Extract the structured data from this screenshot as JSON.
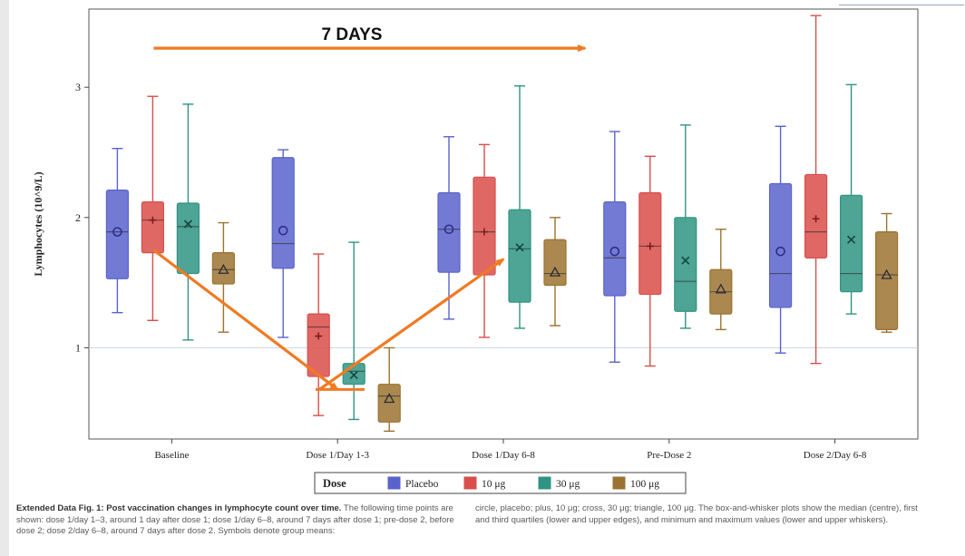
{
  "chart_data": {
    "type": "box",
    "title": "",
    "xlabel": "",
    "ylabel": "Lymphocytes (10^9/L)",
    "ylim": [
      0.3,
      3.6
    ],
    "yticks": [
      1,
      2,
      3
    ],
    "ytick_labels": [
      "1",
      "2",
      "3"
    ],
    "reference_line_y": 1.0,
    "grid": false,
    "legend_placement": "bottom-center",
    "legend_title": "Dose",
    "categories": [
      "Baseline",
      "Dose 1/Day 1-3",
      "Dose 1/Day 6-8",
      "Pre-Dose 2",
      "Dose 2/Day 6-8"
    ],
    "series": [
      {
        "name": "Placebo",
        "color": "#5a63cc",
        "mean_marker": "circle",
        "boxes": [
          {
            "min": 1.27,
            "q1": 1.53,
            "median": 1.89,
            "q3": 2.21,
            "max": 2.53,
            "mean": 1.89
          },
          {
            "min": 1.08,
            "q1": 1.61,
            "median": 1.8,
            "q3": 2.46,
            "max": 2.52,
            "mean": 1.9
          },
          {
            "min": 1.22,
            "q1": 1.58,
            "median": 1.91,
            "q3": 2.19,
            "max": 2.62,
            "mean": 1.91
          },
          {
            "min": 0.89,
            "q1": 1.4,
            "median": 1.69,
            "q3": 2.12,
            "max": 2.66,
            "mean": 1.74
          },
          {
            "min": 0.96,
            "q1": 1.31,
            "median": 1.57,
            "q3": 2.26,
            "max": 2.7,
            "mean": 1.74
          }
        ]
      },
      {
        "name": "10 μg",
        "color": "#d94e4a",
        "mean_marker": "plus",
        "boxes": [
          {
            "min": 1.21,
            "q1": 1.73,
            "median": 1.98,
            "q3": 2.12,
            "max": 2.93,
            "mean": 1.98
          },
          {
            "min": 0.48,
            "q1": 0.78,
            "median": 1.16,
            "q3": 1.26,
            "max": 1.72,
            "mean": 1.09
          },
          {
            "min": 1.08,
            "q1": 1.56,
            "median": 1.89,
            "q3": 2.31,
            "max": 2.56,
            "mean": 1.89
          },
          {
            "min": 0.86,
            "q1": 1.41,
            "median": 1.78,
            "q3": 2.19,
            "max": 2.47,
            "mean": 1.78
          },
          {
            "min": 0.88,
            "q1": 1.69,
            "median": 1.89,
            "q3": 2.33,
            "max": 3.55,
            "mean": 1.99
          }
        ]
      },
      {
        "name": "30 μg",
        "color": "#2f9483",
        "mean_marker": "cross",
        "boxes": [
          {
            "min": 1.06,
            "q1": 1.57,
            "median": 1.93,
            "q3": 2.11,
            "max": 2.87,
            "mean": 1.95
          },
          {
            "min": 0.45,
            "q1": 0.72,
            "median": 0.82,
            "q3": 0.88,
            "max": 1.81,
            "mean": 0.79
          },
          {
            "min": 1.15,
            "q1": 1.35,
            "median": 1.76,
            "q3": 2.06,
            "max": 3.01,
            "mean": 1.77
          },
          {
            "min": 1.15,
            "q1": 1.28,
            "median": 1.51,
            "q3": 2.0,
            "max": 2.71,
            "mean": 1.67
          },
          {
            "min": 1.26,
            "q1": 1.43,
            "median": 1.57,
            "q3": 2.17,
            "max": 3.02,
            "mean": 1.83
          }
        ]
      },
      {
        "name": "100 μg",
        "color": "#9b7330",
        "mean_marker": "triangle",
        "boxes": [
          {
            "min": 1.12,
            "q1": 1.49,
            "median": 1.6,
            "q3": 1.73,
            "max": 1.96,
            "mean": 1.6
          },
          {
            "min": 0.36,
            "q1": 0.43,
            "median": 0.63,
            "q3": 0.72,
            "max": 1.0,
            "mean": 0.61
          },
          {
            "min": 1.17,
            "q1": 1.48,
            "median": 1.57,
            "q3": 1.83,
            "max": 2.0,
            "mean": 1.58
          },
          {
            "min": 1.14,
            "q1": 1.26,
            "median": 1.43,
            "q3": 1.6,
            "max": 1.91,
            "mean": 1.45
          },
          {
            "min": 1.12,
            "q1": 1.14,
            "median": 1.56,
            "q3": 1.89,
            "max": 2.03,
            "mean": 1.56
          }
        ]
      }
    ],
    "annotations": [
      {
        "type": "text",
        "text": "7 DAYS",
        "color": "#111111"
      },
      {
        "type": "arrow",
        "color": "#f07a22",
        "from": {
          "category": "Baseline",
          "y": 3.3
        },
        "to": {
          "category": "Dose 1/Day 6-8",
          "y": 3.3
        }
      },
      {
        "type": "arrow",
        "color": "#f07a22",
        "from": {
          "category": "Baseline",
          "y": 1.75
        },
        "to": {
          "category": "Dose 1/Day 1-3",
          "y": 0.68
        }
      },
      {
        "type": "arrow",
        "color": "#f07a22",
        "from": {
          "category": "Dose 1/Day 1-3",
          "y": 0.68
        },
        "to": {
          "category": "Dose 1/Day 6-8",
          "y": 1.68
        }
      }
    ]
  },
  "caption": {
    "left_bold": "Extended Data Fig. 1: Post vaccination changes in lymphocyte count over time.",
    "left_text": " The following time points are shown: dose 1/day 1–3, around 1 day after dose 1; dose 1/day 6–8, around 7 days after dose 1; pre-dose 2, before dose 2; dose 2/day 6–8, around 7 days after dose 2. Symbols denote group means:",
    "right_text": "circle, placebo; plus, 10 μg; cross, 30 μg; triangle, 100 μg. The box-and-whisker plots show the median (centre), first and third quartiles (lower and upper edges), and minimum and maximum values (lower and upper whiskers)."
  }
}
